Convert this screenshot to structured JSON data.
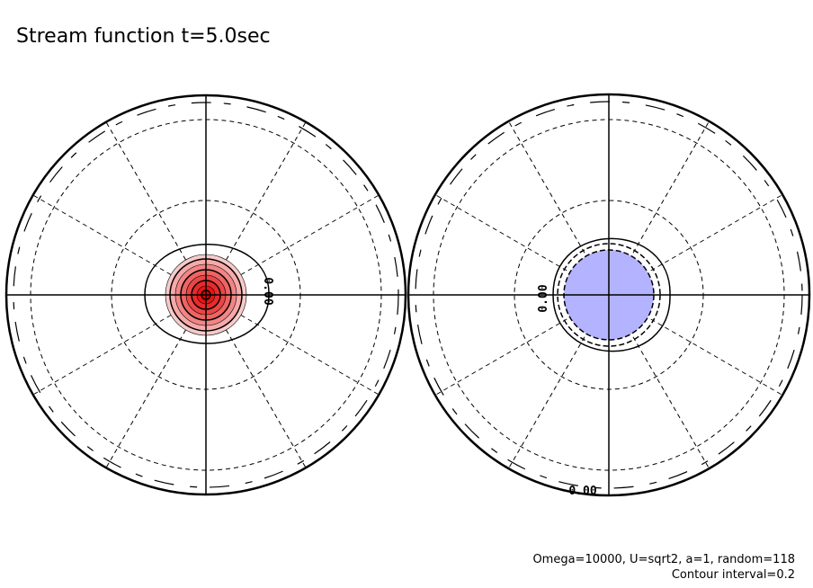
{
  "header": {
    "title": "Stream function t=5.0sec"
  },
  "panels": [
    {
      "contour_labels": [
        "0.00"
      ]
    },
    {
      "contour_labels": [
        "0.00",
        "0.00"
      ]
    }
  ],
  "footer": {
    "lines": [
      "Omega=10000, U=sqrt2, a=1, random=118",
      "Contour interval=0.2"
    ]
  }
}
